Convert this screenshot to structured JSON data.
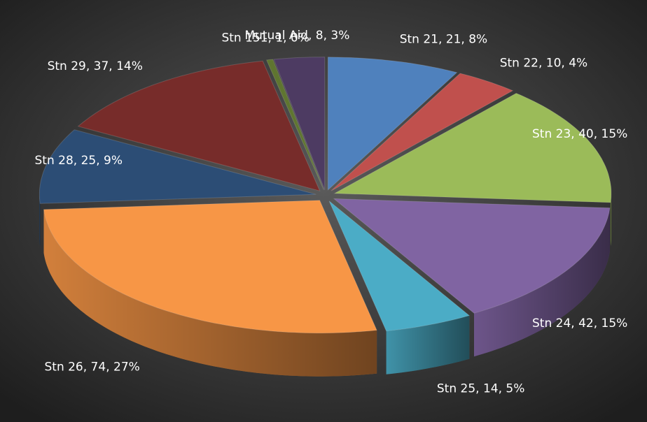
{
  "chart_data": {
    "type": "pie3d",
    "values": [
      21,
      10,
      40,
      42,
      14,
      74,
      25,
      37,
      1,
      8
    ],
    "value_labels": [
      "Stn 21, 21, 8%",
      "Stn 22, 10, 4%",
      "Stn 23, 40, 15%",
      "Stn 24, 42, 15%",
      "Stn 25, 14, 5%",
      "Stn 26, 74, 27%",
      "Stn 28, 25, 9%",
      "Stn 29, 37, 14%",
      "Stn 151, 1, 0%",
      "Mutual Aid, 8, 3%"
    ],
    "colors": [
      "#4f81bd",
      "#c0504d",
      "#9bbb59",
      "#8064a2",
      "#4bacc6",
      "#f79646",
      "#2c4d75",
      "#772c2a",
      "#5f7530",
      "#4d3b62"
    ]
  }
}
